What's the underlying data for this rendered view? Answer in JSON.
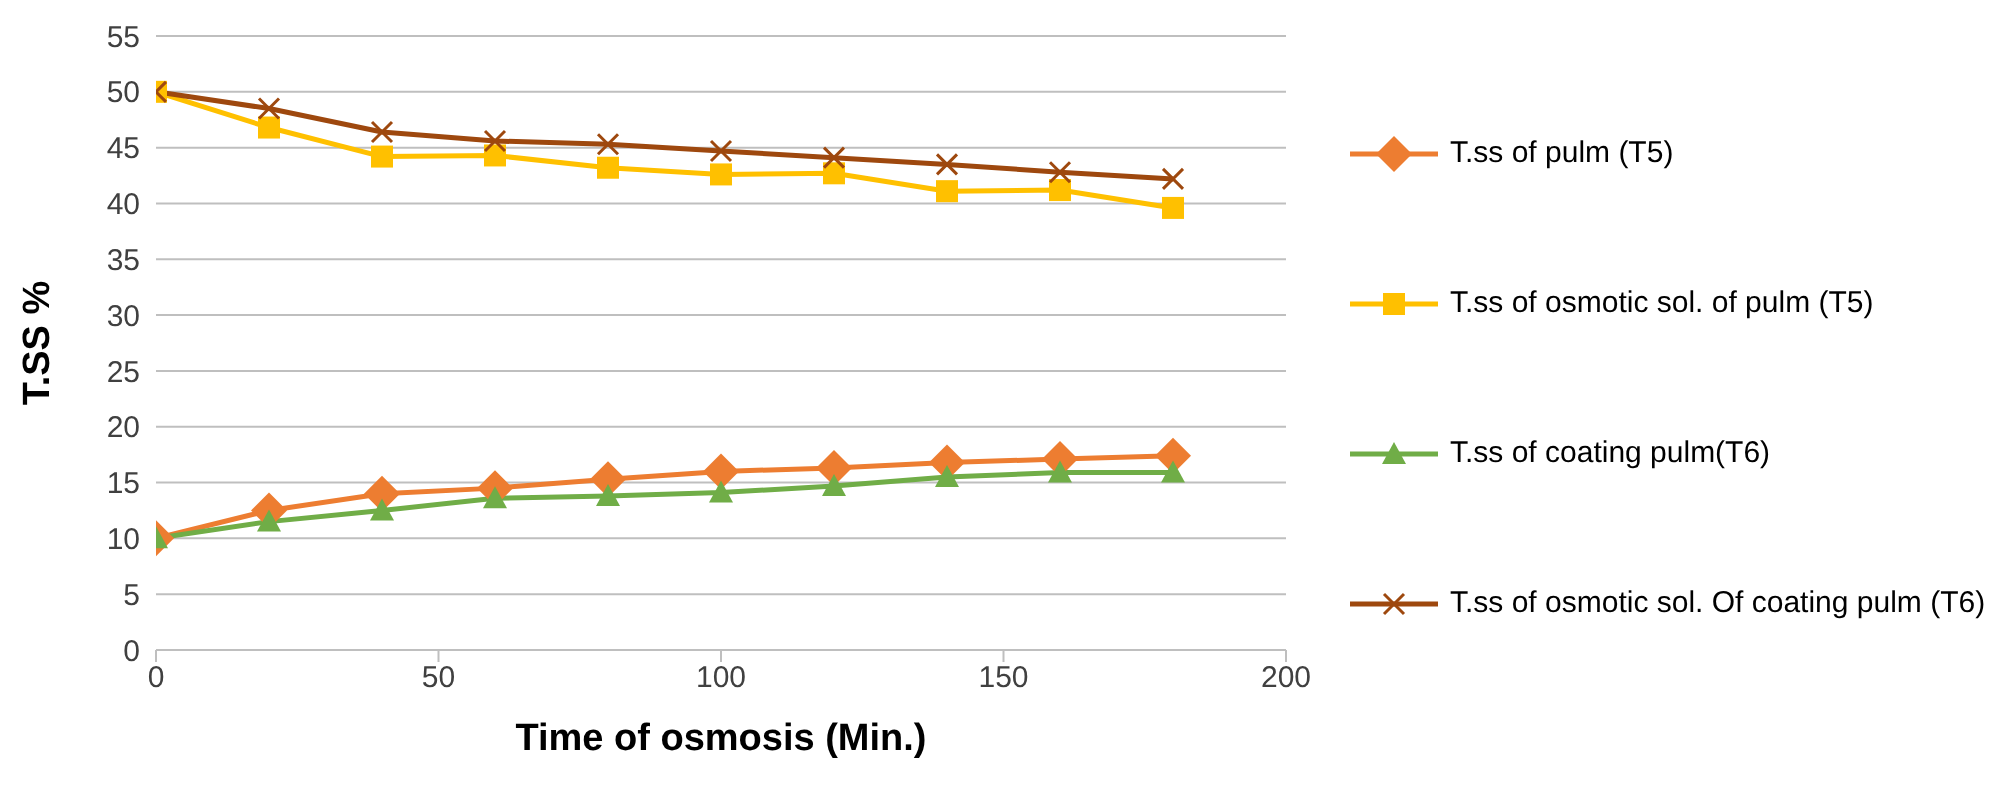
{
  "chart_data": {
    "type": "line",
    "xlabel": "Time of osmosis (Min.)",
    "ylabel": "T.SS %",
    "x": [
      0,
      20,
      40,
      60,
      80,
      100,
      120,
      140,
      160,
      180
    ],
    "series": [
      {
        "name": "T.ss of pulm (T5)",
        "color": "#ed7d31",
        "marker": "diamond",
        "values": [
          10,
          12.5,
          14,
          14.5,
          15.3,
          16,
          16.3,
          16.8,
          17.1,
          17.4
        ]
      },
      {
        "name": "T.ss of osmotic sol. of pulm (T5)",
        "color": "#ffc000",
        "marker": "square",
        "values": [
          50,
          46.8,
          44.2,
          44.3,
          43.2,
          42.6,
          42.7,
          41.1,
          41.2,
          39.6
        ]
      },
      {
        "name": "T.ss of coating pulm(T6)",
        "color": "#70ad47",
        "marker": "triangle",
        "values": [
          10,
          11.5,
          12.5,
          13.6,
          13.8,
          14.1,
          14.7,
          15.5,
          15.9,
          15.9
        ]
      },
      {
        "name": "T.ss of osmotic sol. Of coating pulm (T6)",
        "color": "#9e480e",
        "marker": "cross",
        "values": [
          50,
          48.5,
          46.4,
          45.6,
          45.3,
          44.7,
          44.1,
          43.5,
          42.8,
          42.2
        ]
      }
    ],
    "xlim": [
      0,
      200
    ],
    "xticks": [
      0,
      50,
      100,
      150,
      200
    ],
    "ylim": [
      0,
      55
    ],
    "yticks": [
      0,
      5,
      10,
      15,
      20,
      25,
      30,
      35,
      40,
      45,
      50,
      55
    ],
    "grid": "y",
    "legend": "right"
  }
}
